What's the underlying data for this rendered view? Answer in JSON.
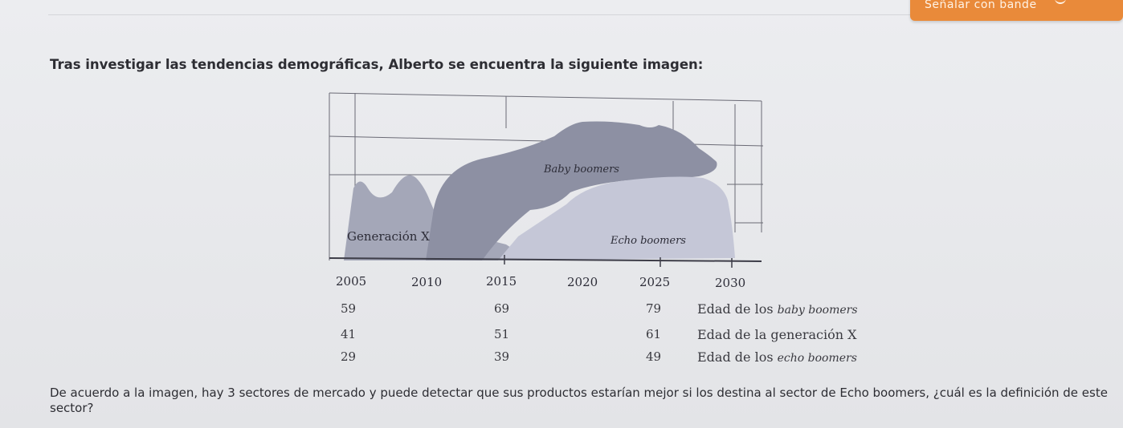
{
  "toolbar": {
    "highlight_label": "Señalar con bande"
  },
  "question_intro": "Tras investigar las tendencias demográficas, Alberto se encuentra la siguiente imagen:",
  "figure": {
    "series_labels": {
      "baby": "Baby boomers",
      "genx": "Generación X",
      "echo": "Echo boomers"
    },
    "years": [
      "2005",
      "2010",
      "2015",
      "2020",
      "2025",
      "2030"
    ],
    "colors": {
      "baby": "#8c8fa2",
      "genx": "#a6a9ba",
      "echo": "#c6c8d8",
      "axis": "#4a4a55"
    }
  },
  "age_table": [
    {
      "c1": "59",
      "c2": "69",
      "c3": "79",
      "label_prefix": "Edad de los ",
      "label_italic": "baby boomers"
    },
    {
      "c1": "41",
      "c2": "51",
      "c3": "61",
      "label_prefix": "Edad de la generación X",
      "label_italic": ""
    },
    {
      "c1": "29",
      "c2": "39",
      "c3": "49",
      "label_prefix": "Edad de los ",
      "label_italic": "echo boomers"
    }
  ],
  "question_text": "De acuerdo a la imagen, hay 3 sectores de mercado y puede detectar que sus productos estarían mejor si los destina al sector de Echo boomers, ¿cuál es la definición de este sector?"
}
